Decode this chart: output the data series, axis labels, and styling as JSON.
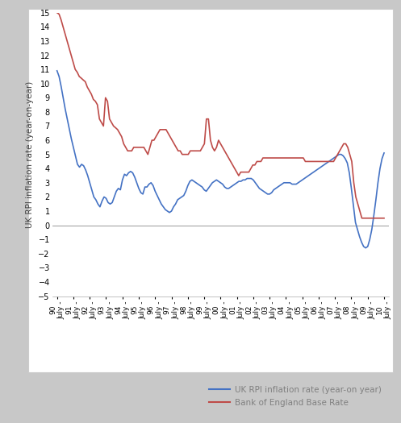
{
  "ylabel": "UK RPI inflation rate (year-on-year)",
  "ylim": [
    -5,
    15
  ],
  "yticks": [
    -5,
    -4,
    -3,
    -2,
    -1,
    0,
    1,
    2,
    3,
    4,
    5,
    6,
    7,
    8,
    9,
    10,
    11,
    12,
    13,
    14,
    15
  ],
  "x_labels": [
    "90\nJuly -",
    "91\nJuly -",
    "92\nJuly -",
    "93\nJuly -",
    "94\nJuly -",
    "95\nJuly -",
    "96\nJuly -",
    "97\nJuly -",
    "98\nJuly -",
    "99\nJuly -",
    "00\nJuly -",
    "01\nJuly -",
    "02\nJuly -",
    "03\nJuly -",
    "04\nJuly -",
    "05\nJuly -",
    "06\nJuly -",
    "07\nJuly -",
    "08\nJuly -",
    "09\nJuly -",
    "10\nJuly -"
  ],
  "rpi_color": "#4472C4",
  "boe_color": "#BE4B48",
  "fig_bg": "#C8C8C8",
  "plot_bg": "#FFFFFF",
  "legend1": "UK RPI inflation rate (year-on year)",
  "legend2": "Bank of England Base Rate",
  "legend_text_color": "#808080",
  "rpi": [
    10.9,
    10.5,
    9.8,
    9.0,
    8.2,
    7.5,
    6.8,
    6.1,
    5.5,
    4.9,
    4.3,
    4.1,
    4.3,
    4.2,
    3.9,
    3.5,
    3.0,
    2.5,
    2.0,
    1.8,
    1.5,
    1.3,
    1.7,
    2.0,
    1.9,
    1.6,
    1.5,
    1.6,
    2.0,
    2.4,
    2.6,
    2.5,
    3.2,
    3.6,
    3.5,
    3.7,
    3.8,
    3.7,
    3.4,
    3.0,
    2.6,
    2.3,
    2.2,
    2.7,
    2.7,
    2.9,
    3.0,
    2.8,
    2.4,
    2.1,
    1.8,
    1.5,
    1.3,
    1.1,
    1.0,
    0.9,
    1.0,
    1.3,
    1.5,
    1.8,
    1.9,
    2.0,
    2.1,
    2.4,
    2.8,
    3.1,
    3.2,
    3.1,
    3.0,
    2.9,
    2.8,
    2.7,
    2.5,
    2.4,
    2.6,
    2.8,
    3.0,
    3.1,
    3.2,
    3.1,
    3.0,
    2.9,
    2.7,
    2.6,
    2.6,
    2.7,
    2.8,
    2.9,
    3.0,
    3.1,
    3.1,
    3.2,
    3.2,
    3.3,
    3.3,
    3.3,
    3.2,
    3.0,
    2.8,
    2.6,
    2.5,
    2.4,
    2.3,
    2.2,
    2.2,
    2.3,
    2.5,
    2.6,
    2.7,
    2.8,
    2.9,
    3.0,
    3.0,
    3.0,
    3.0,
    2.9,
    2.9,
    2.9,
    3.0,
    3.1,
    3.2,
    3.3,
    3.4,
    3.5,
    3.6,
    3.7,
    3.8,
    3.9,
    4.0,
    4.1,
    4.2,
    4.3,
    4.4,
    4.5,
    4.6,
    4.7,
    4.8,
    4.9,
    5.0,
    5.0,
    4.9,
    4.7,
    4.4,
    3.7,
    2.6,
    1.4,
    0.2,
    -0.3,
    -0.8,
    -1.2,
    -1.5,
    -1.6,
    -1.5,
    -1.0,
    -0.3,
    0.7,
    1.8,
    3.0,
    4.0,
    4.7,
    5.1
  ],
  "boe": [
    15.0,
    14.9,
    14.5,
    14.0,
    13.5,
    13.0,
    12.5,
    12.0,
    11.5,
    11.0,
    10.8,
    10.5,
    10.38,
    10.25,
    10.13,
    9.75,
    9.5,
    9.25,
    8.88,
    8.75,
    8.5,
    7.5,
    7.25,
    7.0,
    9.0,
    8.75,
    7.5,
    7.25,
    7.0,
    6.88,
    6.75,
    6.5,
    6.25,
    5.75,
    5.5,
    5.25,
    5.25,
    5.25,
    5.5,
    5.5,
    5.5,
    5.5,
    5.5,
    5.5,
    5.25,
    5.0,
    5.5,
    6.0,
    6.0,
    6.25,
    6.5,
    6.75,
    6.75,
    6.75,
    6.75,
    6.5,
    6.25,
    6.0,
    5.75,
    5.5,
    5.25,
    5.25,
    5.0,
    5.0,
    5.0,
    5.0,
    5.25,
    5.25,
    5.25,
    5.25,
    5.25,
    5.25,
    5.5,
    5.75,
    7.5,
    7.5,
    6.0,
    5.5,
    5.25,
    5.5,
    6.0,
    5.75,
    5.5,
    5.25,
    5.0,
    4.75,
    4.5,
    4.25,
    4.0,
    3.75,
    3.5,
    3.75,
    3.75,
    3.75,
    3.75,
    3.75,
    4.0,
    4.25,
    4.25,
    4.5,
    4.5,
    4.5,
    4.75,
    4.75,
    4.75,
    4.75,
    4.75,
    4.75,
    4.75,
    4.75,
    4.75,
    4.75,
    4.75,
    4.75,
    4.75,
    4.75,
    4.75,
    4.75,
    4.75,
    4.75,
    4.75,
    4.75,
    4.75,
    4.5,
    4.5,
    4.5,
    4.5,
    4.5,
    4.5,
    4.5,
    4.5,
    4.5,
    4.5,
    4.5,
    4.5,
    4.5,
    4.5,
    4.5,
    4.75,
    5.0,
    5.25,
    5.5,
    5.75,
    5.75,
    5.5,
    5.0,
    4.5,
    3.0,
    2.0,
    1.5,
    1.0,
    0.5,
    0.5,
    0.5,
    0.5,
    0.5,
    0.5,
    0.5,
    0.5,
    0.5,
    0.5,
    0.5,
    0.5
  ]
}
